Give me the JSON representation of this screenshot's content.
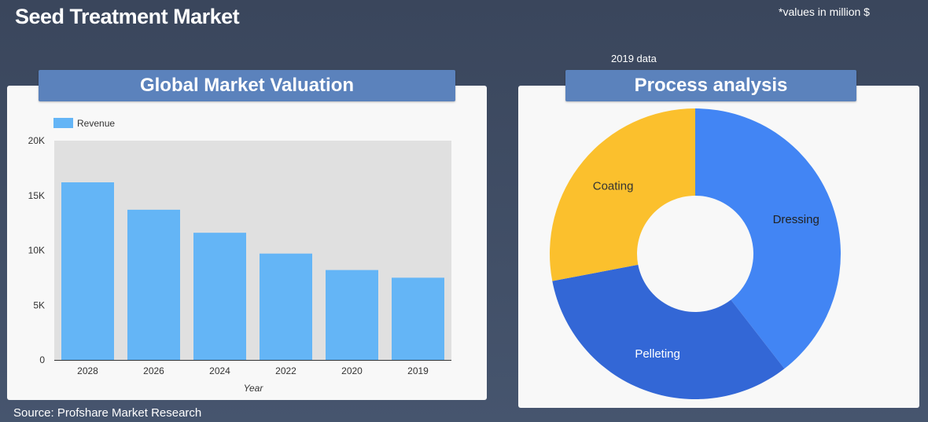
{
  "header": {
    "title": "Seed Treatment Market",
    "units_note": "*values in million $",
    "year_note": "2019 data"
  },
  "footer": {
    "source": "Source: Profshare Market Research"
  },
  "panels": {
    "left_title": "Global Market Valuation",
    "right_title": "Process analysis"
  },
  "chart_data": [
    {
      "type": "bar",
      "title": "Global Market Valuation",
      "categories": [
        "2028",
        "2026",
        "2024",
        "2022",
        "2020",
        "2019"
      ],
      "series": [
        {
          "name": "Revenue",
          "values": [
            16200,
            13700,
            11600,
            9700,
            8200,
            7500
          ],
          "color": "#64b5f6"
        }
      ],
      "xlabel": "Year",
      "ylabel": "",
      "ylim": [
        0,
        20000
      ],
      "yticks": [
        0,
        5000,
        10000,
        15000,
        20000
      ],
      "ytick_labels": [
        "0",
        "5K",
        "10K",
        "15K",
        "20K"
      ],
      "legend": "top-left",
      "plot_background": "#e0e0e0"
    },
    {
      "type": "pie",
      "title": "Process analysis",
      "donut": true,
      "slices": [
        {
          "label": "Dressing",
          "value": 39.5,
          "color": "#4285f4"
        },
        {
          "label": "Pelleting",
          "value": 32.5,
          "color": "#3367d6"
        },
        {
          "label": "Coating",
          "value": 28.0,
          "color": "#fbc02d"
        }
      ]
    }
  ]
}
